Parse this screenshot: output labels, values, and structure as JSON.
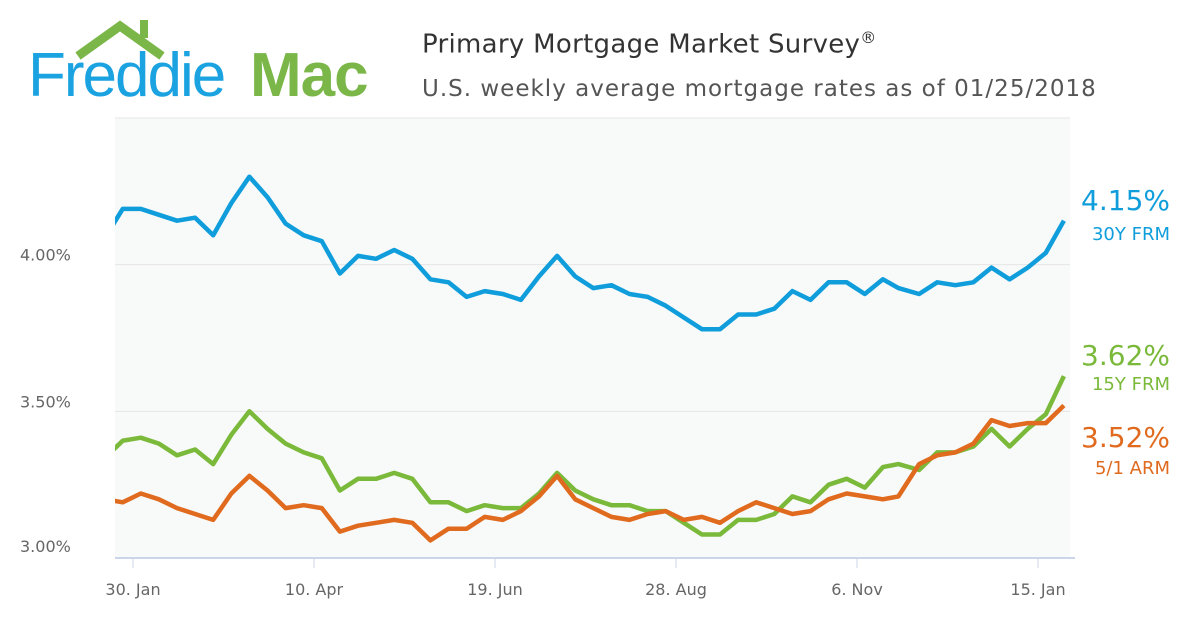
{
  "logo": {
    "text_part1": "Freddie",
    "text_part2": "Mac",
    "colors": {
      "blue": "#1aa3e0",
      "green": "#7ab648"
    }
  },
  "header": {
    "title": "Primary Mortgage Market Survey",
    "title_mark": "®",
    "subtitle": "U.S. weekly average mortgage rates as of 01/25/2018"
  },
  "chart_data": {
    "type": "line",
    "title": "Primary Mortgage Market Survey",
    "subtitle": "U.S. weekly average mortgage rates as of 01/25/2018",
    "xlabel": "",
    "ylabel": "",
    "ylim": [
      3.0,
      4.5
    ],
    "xlim": [
      "2017-01-19",
      "2018-01-25"
    ],
    "grid": true,
    "y_ticks": [
      3.0,
      3.5,
      4.0
    ],
    "y_tick_labels": [
      "3.00%",
      "3.50%",
      "4.00%"
    ],
    "x_ticks": [
      "2017-01-30",
      "2017-04-10",
      "2017-06-19",
      "2017-08-28",
      "2017-11-06",
      "2018-01-15"
    ],
    "x_tick_labels": [
      "30. Jan",
      "10. Apr",
      "19. Jun",
      "28. Aug",
      "6. Nov",
      "15. Jan"
    ],
    "x": [
      "2017-01-19",
      "2017-01-26",
      "2017-02-02",
      "2017-02-09",
      "2017-02-16",
      "2017-02-23",
      "2017-03-02",
      "2017-03-09",
      "2017-03-16",
      "2017-03-23",
      "2017-03-30",
      "2017-04-06",
      "2017-04-13",
      "2017-04-20",
      "2017-04-27",
      "2017-05-04",
      "2017-05-11",
      "2017-05-18",
      "2017-05-25",
      "2017-06-01",
      "2017-06-08",
      "2017-06-15",
      "2017-06-22",
      "2017-06-29",
      "2017-07-06",
      "2017-07-13",
      "2017-07-20",
      "2017-07-27",
      "2017-08-03",
      "2017-08-10",
      "2017-08-17",
      "2017-08-24",
      "2017-08-31",
      "2017-09-07",
      "2017-09-14",
      "2017-09-21",
      "2017-09-28",
      "2017-10-05",
      "2017-10-12",
      "2017-10-19",
      "2017-10-26",
      "2017-11-02",
      "2017-11-09",
      "2017-11-16",
      "2017-11-22",
      "2017-11-30",
      "2017-12-07",
      "2017-12-14",
      "2017-12-21",
      "2017-12-28",
      "2018-01-04",
      "2018-01-11",
      "2018-01-18",
      "2018-01-25"
    ],
    "series": [
      {
        "name": "30Y FRM",
        "last_label": "4.15%",
        "color": "#0f9ddb",
        "values": [
          4.09,
          4.19,
          4.19,
          4.17,
          4.15,
          4.16,
          4.1,
          4.21,
          4.3,
          4.23,
          4.14,
          4.1,
          4.08,
          3.97,
          4.03,
          4.02,
          4.05,
          4.02,
          3.95,
          3.94,
          3.89,
          3.91,
          3.9,
          3.88,
          3.96,
          4.03,
          3.96,
          3.92,
          3.93,
          3.9,
          3.89,
          3.86,
          3.82,
          3.78,
          3.78,
          3.83,
          3.83,
          3.85,
          3.91,
          3.88,
          3.94,
          3.94,
          3.9,
          3.95,
          3.92,
          3.9,
          3.94,
          3.93,
          3.94,
          3.99,
          3.95,
          3.99,
          4.04,
          4.15
        ]
      },
      {
        "name": "15Y FRM",
        "last_label": "3.62%",
        "color": "#7ab93a",
        "values": [
          3.34,
          3.4,
          3.41,
          3.39,
          3.35,
          3.37,
          3.32,
          3.42,
          3.5,
          3.44,
          3.39,
          3.36,
          3.34,
          3.23,
          3.27,
          3.27,
          3.29,
          3.27,
          3.19,
          3.19,
          3.16,
          3.18,
          3.17,
          3.17,
          3.22,
          3.29,
          3.23,
          3.2,
          3.18,
          3.18,
          3.16,
          3.16,
          3.12,
          3.08,
          3.08,
          3.13,
          3.13,
          3.15,
          3.21,
          3.19,
          3.25,
          3.27,
          3.24,
          3.31,
          3.32,
          3.3,
          3.36,
          3.36,
          3.38,
          3.44,
          3.38,
          3.44,
          3.49,
          3.62
        ]
      },
      {
        "name": "5/1 ARM",
        "last_label": "3.52%",
        "color": "#e06a1e",
        "values": [
          3.2,
          3.19,
          3.22,
          3.2,
          3.17,
          3.15,
          3.13,
          3.22,
          3.28,
          3.23,
          3.17,
          3.18,
          3.17,
          3.09,
          3.11,
          3.12,
          3.13,
          3.12,
          3.06,
          3.1,
          3.1,
          3.14,
          3.13,
          3.16,
          3.21,
          3.28,
          3.2,
          3.17,
          3.14,
          3.13,
          3.15,
          3.16,
          3.13,
          3.14,
          3.12,
          3.16,
          3.19,
          3.17,
          3.15,
          3.16,
          3.2,
          3.22,
          3.21,
          3.2,
          3.21,
          3.32,
          3.35,
          3.36,
          3.39,
          3.47,
          3.45,
          3.46,
          3.46,
          3.52
        ]
      }
    ]
  }
}
